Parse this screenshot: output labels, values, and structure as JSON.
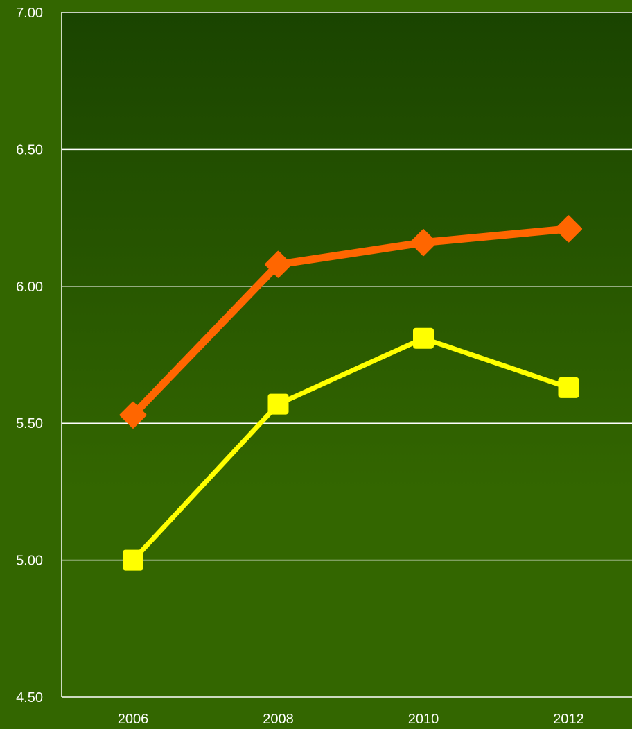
{
  "chart_data": {
    "type": "line",
    "title": "",
    "xlabel": "",
    "ylabel": "",
    "categories": [
      "2006",
      "2008",
      "2010",
      "2012"
    ],
    "ylim": [
      4.5,
      7.0
    ],
    "yticks": [
      "4.50",
      "5.00",
      "5.50",
      "6.00",
      "6.50",
      "7.00"
    ],
    "grid": true,
    "legend": "none",
    "background_top": "#1a4400",
    "background_bottom": "#336600",
    "series": [
      {
        "values": [
          5.53,
          6.08,
          6.16,
          6.21
        ],
        "color": "#ff6600",
        "marker": "diamond"
      },
      {
        "values": [
          5.0,
          5.57,
          5.81,
          5.63
        ],
        "color": "#ffff00",
        "marker": "square"
      }
    ]
  }
}
